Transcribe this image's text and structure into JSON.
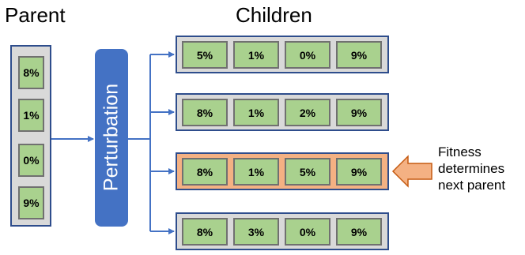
{
  "titles": {
    "parent": "Parent",
    "children": "Children"
  },
  "parent": {
    "genes": [
      "8%",
      "1%",
      "0%",
      "9%"
    ]
  },
  "perturbation": {
    "label": "Perturbation"
  },
  "children": [
    {
      "genes": [
        "5%",
        "1%",
        "0%",
        "9%"
      ],
      "selected": false
    },
    {
      "genes": [
        "8%",
        "1%",
        "2%",
        "9%"
      ],
      "selected": false
    },
    {
      "genes": [
        "8%",
        "1%",
        "5%",
        "9%"
      ],
      "selected": true
    },
    {
      "genes": [
        "8%",
        "3%",
        "0%",
        "9%"
      ],
      "selected": false
    }
  ],
  "annotation": {
    "lines": [
      "Fitness",
      "determines",
      "next parent"
    ]
  },
  "colors": {
    "gene_fill": "#a9d18e",
    "box_fill": "#d9d9d9",
    "selected_fill": "#f4b183",
    "border": "#2e4d8c",
    "perturbation_fill": "#4472c4",
    "arrow": "#4472c4"
  }
}
